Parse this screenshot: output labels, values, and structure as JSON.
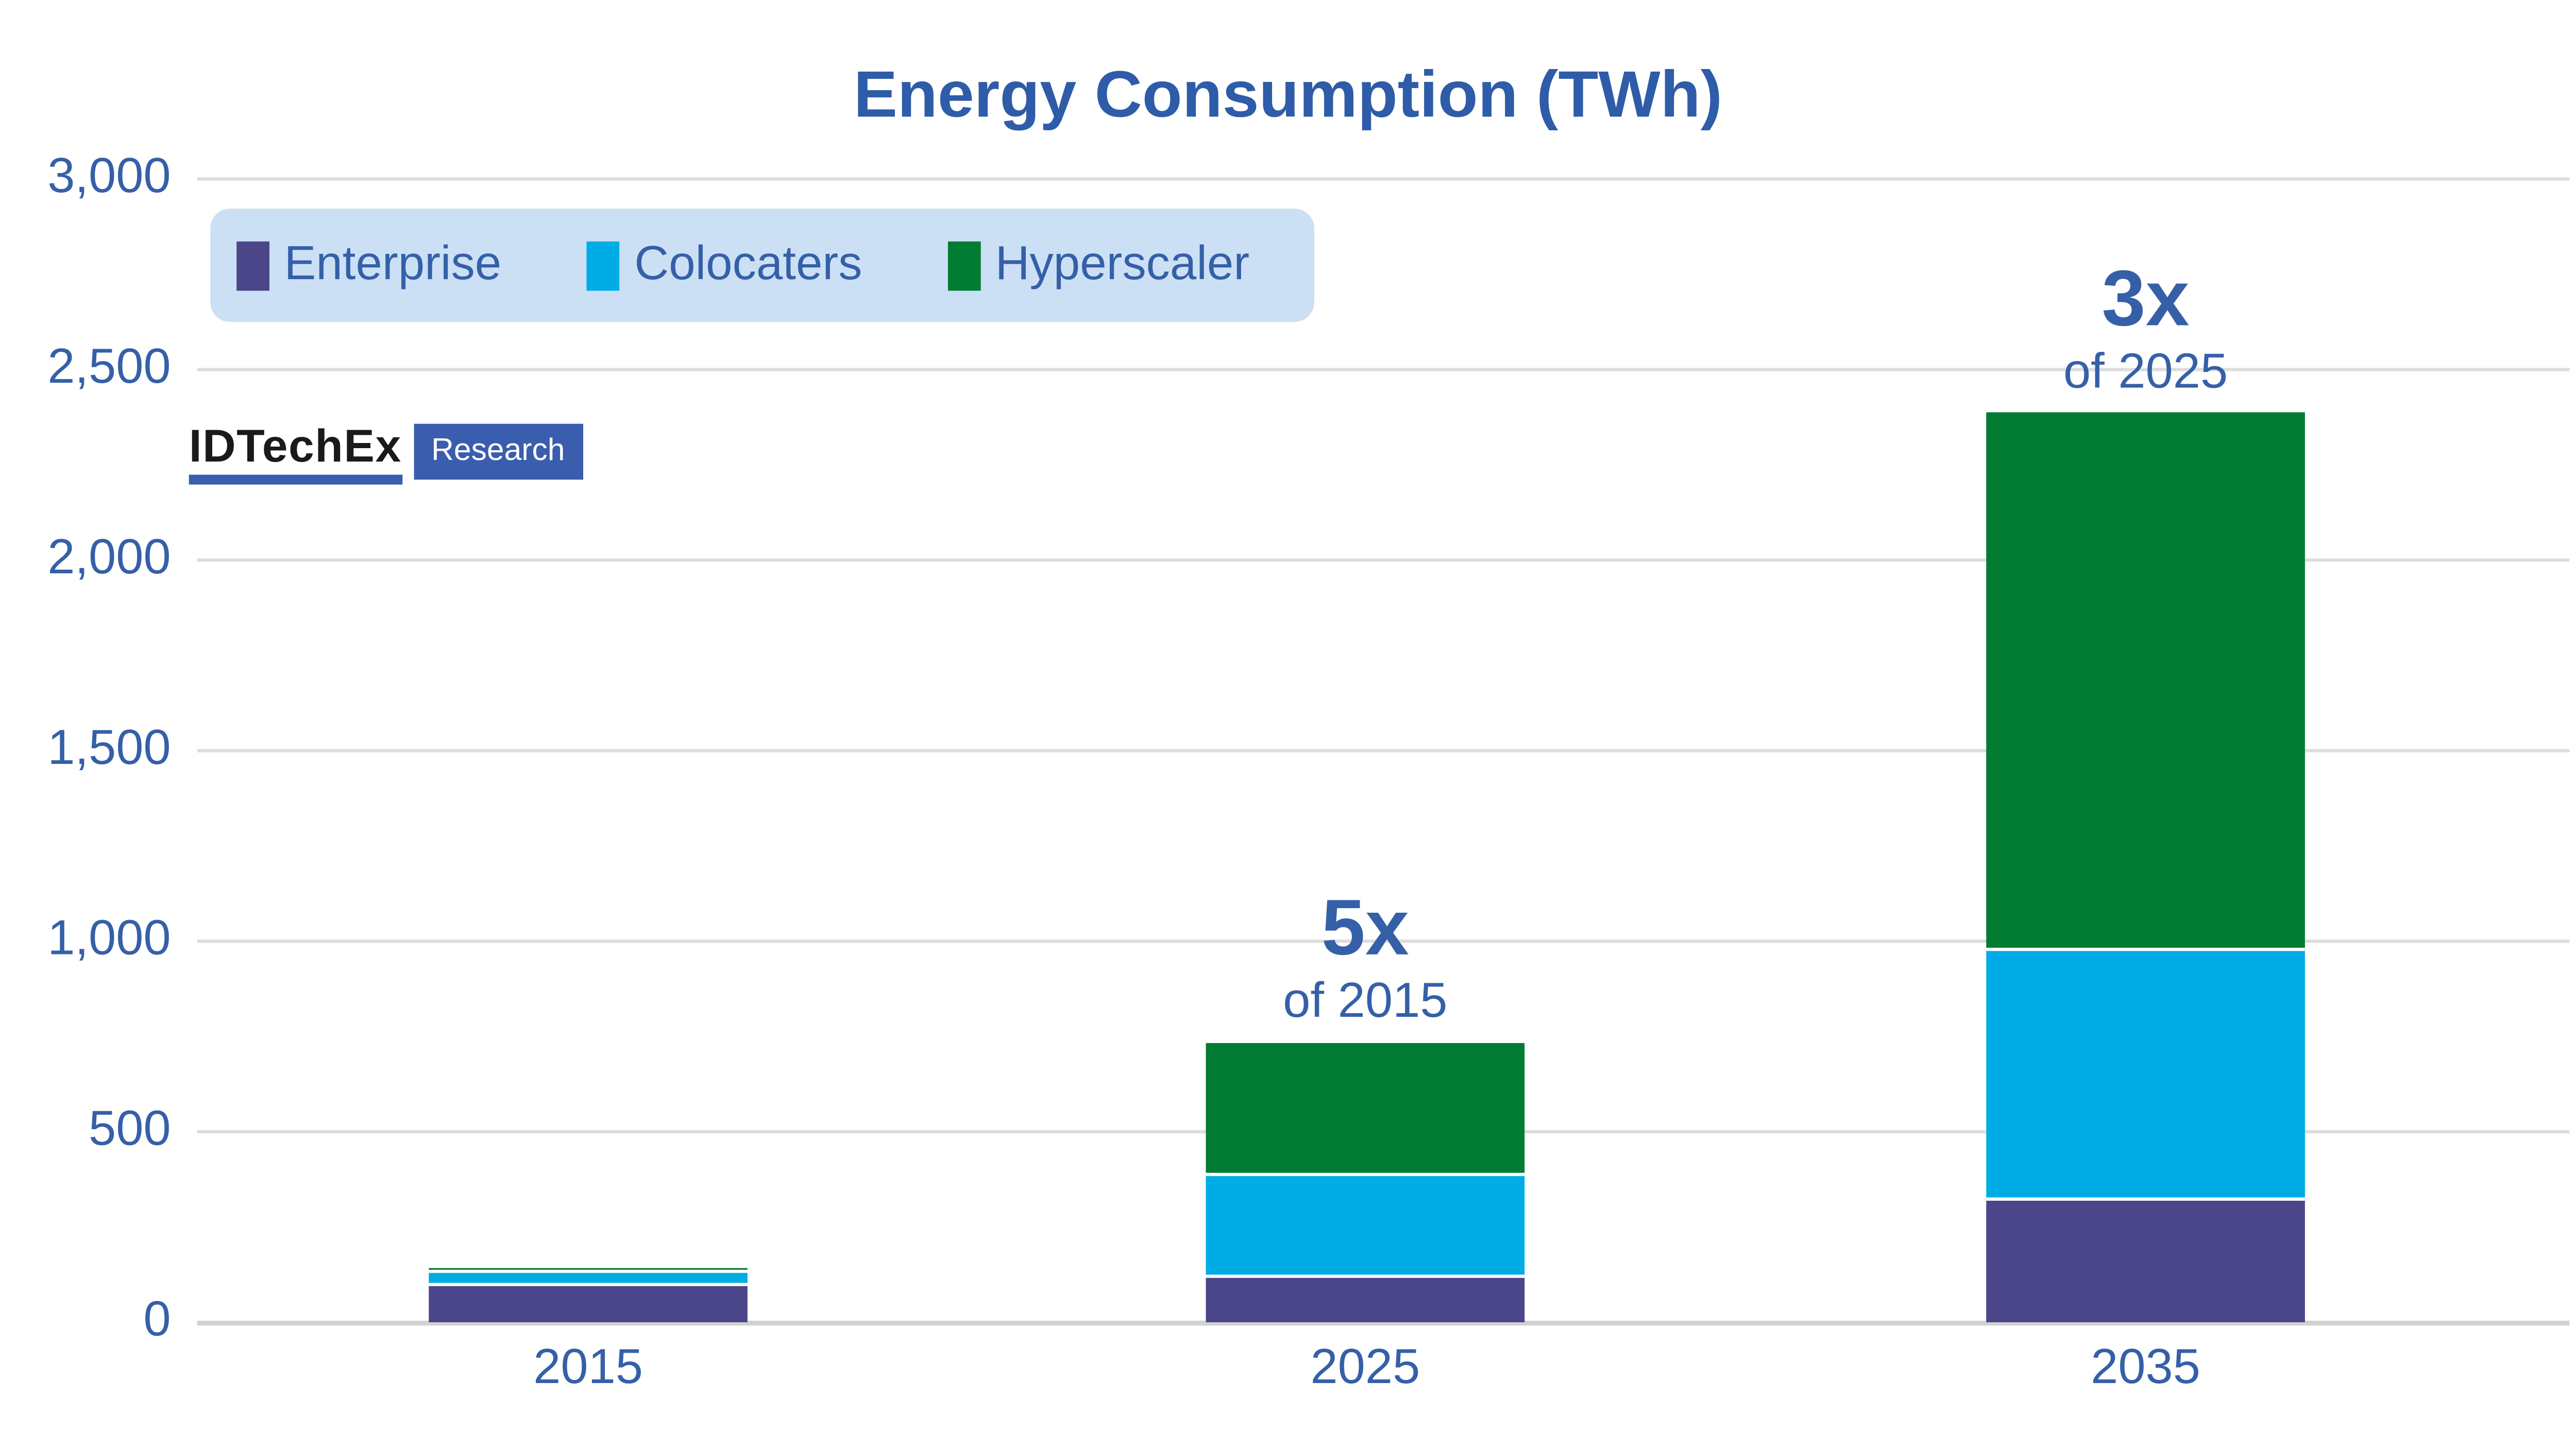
{
  "title": "Energy Consumption (TWh)",
  "logo": {
    "brand": "IDTechEx",
    "suffix": "Research"
  },
  "legend": {
    "items": [
      {
        "label": "Enterprise",
        "color": "#4B4589"
      },
      {
        "label": "Colocaters",
        "color": "#00ACE6"
      },
      {
        "label": "Hyperscaler",
        "color": "#027C32"
      }
    ]
  },
  "colors": {
    "background": "#FFFFFF",
    "title": "#2E5CA8",
    "accent_text": "#3560A8",
    "enterprise": "#4B4589",
    "colocaters": "#00ACE6",
    "hyperscaler": "#027C32",
    "legend_bg": "#CCE0F5",
    "gridline": "#DDDDDD",
    "axis_line": "#D2D2D2",
    "logo_blue": "#3A5DAE",
    "logo_text": "#1A1A1A"
  },
  "chart_data": {
    "type": "bar",
    "stacked": true,
    "title": "Energy Consumption (TWh)",
    "xlabel": "",
    "ylabel": "",
    "categories": [
      "2015",
      "2025",
      "2035"
    ],
    "series": [
      {
        "name": "Enterprise",
        "color": "#4B4589",
        "values": [
          95,
          115,
          320
        ]
      },
      {
        "name": "Colocaters",
        "color": "#00ACE6",
        "values": [
          35,
          270,
          655
        ]
      },
      {
        "name": "Hyperscaler",
        "color": "#027C32",
        "values": [
          12,
          350,
          1415
        ]
      }
    ],
    "totals": [
      142,
      735,
      2390
    ],
    "ylim": [
      0,
      3000
    ],
    "yticks": [
      0,
      500,
      1000,
      1500,
      2000,
      2500,
      3000
    ],
    "ytick_labels": [
      "0",
      "500",
      "1,000",
      "1,500",
      "2,000",
      "2,500",
      "3,000"
    ],
    "grid": "horizontal",
    "legend_position": "top-left",
    "annotations": [
      {
        "category": "2025",
        "line1": "5x",
        "line2": "of 2015"
      },
      {
        "category": "2035",
        "line1": "3x",
        "line2": "of 2025"
      }
    ]
  }
}
